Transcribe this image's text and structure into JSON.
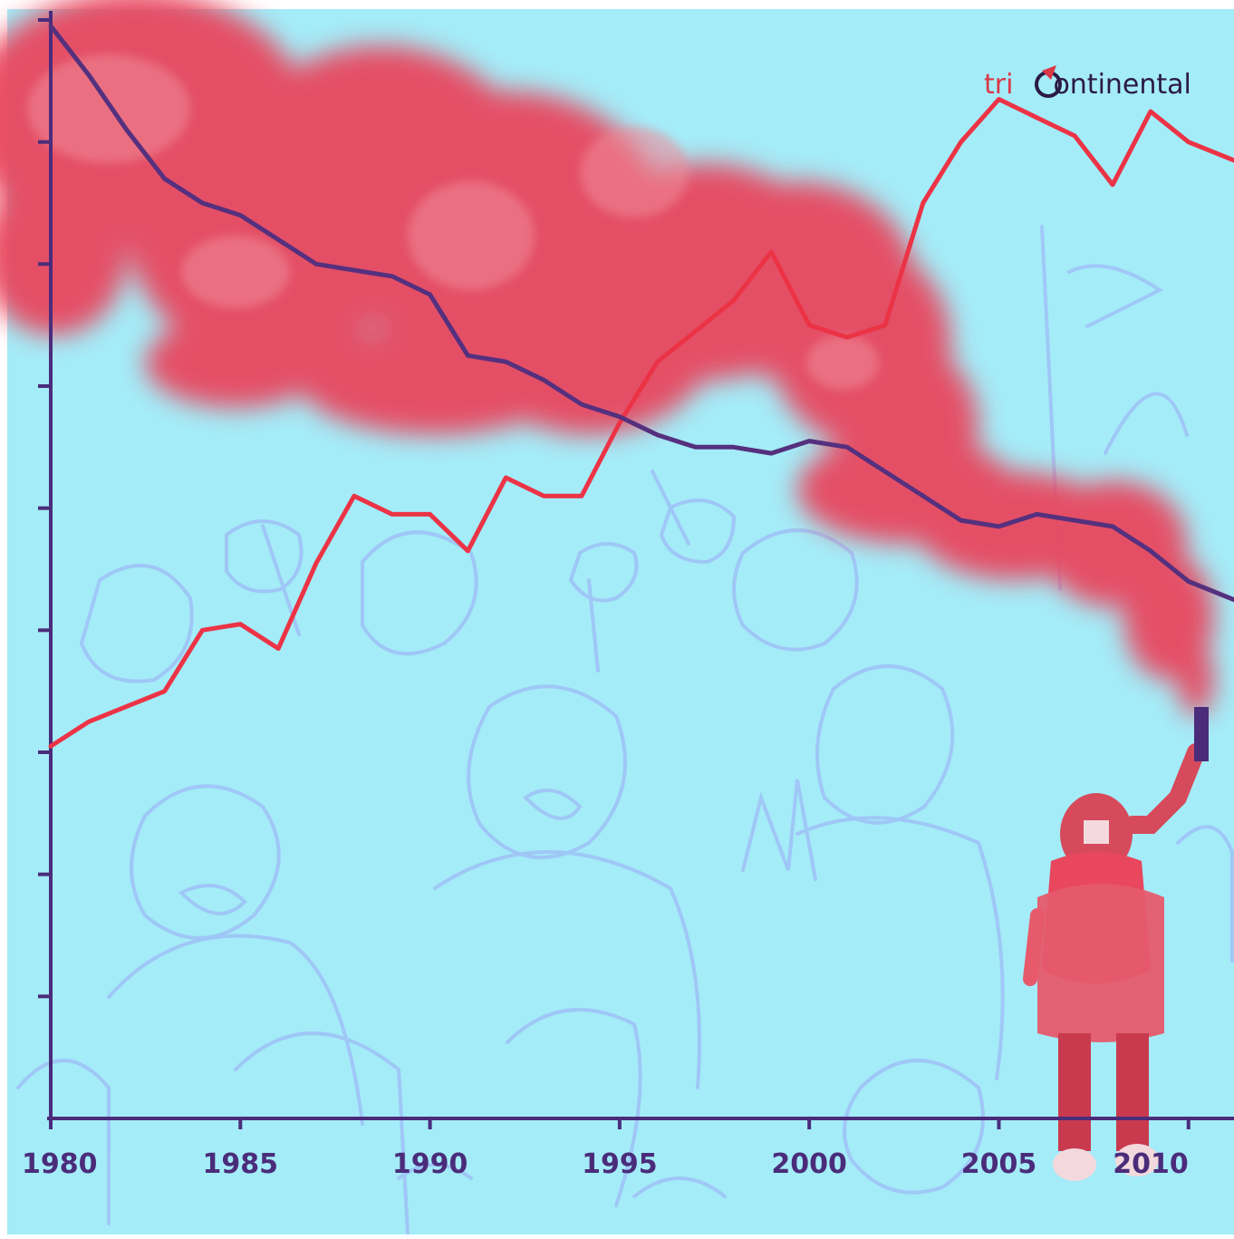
{
  "logo": {
    "part1": "tri",
    "part2": "ontinental"
  },
  "colors": {
    "background": "#a4ecf8",
    "smoke": "#e8475e",
    "smoke_light": "#f08a98",
    "red_line": "#ec3346",
    "purple_line": "#55307e",
    "axis": "#4a2c7a",
    "crowd": "#9fc4f6"
  },
  "chart_data": {
    "type": "line",
    "title": "",
    "xlabel": "",
    "ylabel": "",
    "x_ticks": [
      "1980",
      "1985",
      "1990",
      "1995",
      "2000",
      "2005",
      "2010"
    ],
    "xlim": [
      1980,
      2011.2
    ],
    "ylim": [
      0,
      9
    ],
    "y_tick_count": 9,
    "grid": false,
    "series": [
      {
        "color": "#ec3346",
        "x": [
          1980,
          1981,
          1983,
          1984,
          1985,
          1986,
          1987,
          1988,
          1989,
          1990,
          1991,
          1992,
          1993,
          1994,
          1995,
          1996,
          1997,
          1998,
          1999,
          2000,
          2001,
          2002,
          2003,
          2004,
          2005,
          2006,
          2007,
          2008,
          2009,
          2010,
          2011.2
        ],
        "y": [
          3.05,
          3.25,
          3.5,
          4.0,
          4.05,
          3.85,
          4.55,
          5.1,
          4.95,
          4.95,
          4.65,
          5.25,
          5.1,
          5.1,
          5.7,
          6.2,
          6.45,
          6.7,
          7.1,
          6.5,
          6.4,
          6.5,
          7.5,
          8.0,
          8.35,
          8.2,
          8.05,
          7.65,
          8.25,
          8.0,
          7.85
        ]
      },
      {
        "color": "#55307e",
        "x": [
          1980,
          1981,
          1982,
          1983,
          1984,
          1985,
          1986,
          1987,
          1988,
          1989,
          1990,
          1991,
          1992,
          1993,
          1994,
          1995,
          1996,
          1997,
          1998,
          1999,
          2000,
          2001,
          2002,
          2003,
          2004,
          2005,
          2006,
          2007,
          2008,
          2009,
          2010,
          2011.2
        ],
        "y": [
          8.95,
          8.55,
          8.1,
          7.7,
          7.5,
          7.4,
          7.2,
          7.0,
          6.95,
          6.9,
          6.75,
          6.25,
          6.2,
          6.05,
          5.85,
          5.75,
          5.6,
          5.5,
          5.5,
          5.45,
          5.55,
          5.5,
          5.3,
          5.1,
          4.9,
          4.85,
          4.95,
          4.9,
          4.85,
          4.65,
          4.4,
          4.25
        ]
      }
    ]
  }
}
